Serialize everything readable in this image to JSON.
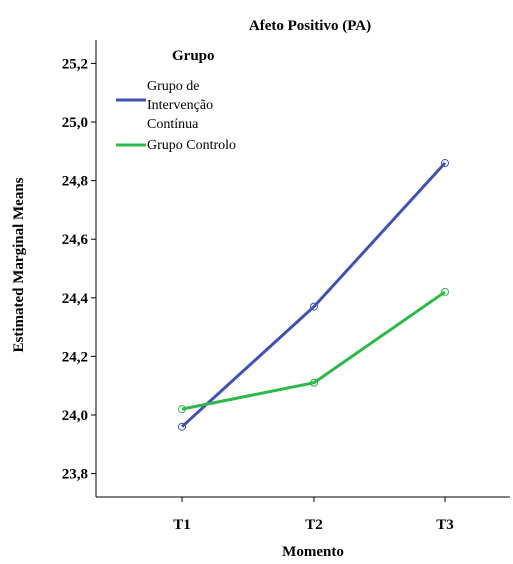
{
  "chart_data": {
    "type": "line",
    "title": "Afeto Positivo (PA)",
    "xlabel": "Momento",
    "ylabel": "Estimated Marginal Means",
    "categories": [
      "T1",
      "T2",
      "T3"
    ],
    "ylim": [
      23.72,
      25.28
    ],
    "yticks": [
      "23,8",
      "24,0",
      "24,2",
      "24,4",
      "24,6",
      "24,8",
      "25,0",
      "25,2"
    ],
    "ytick_values": [
      23.8,
      24.0,
      24.2,
      24.4,
      24.6,
      24.8,
      25.0,
      25.2
    ],
    "grid": false,
    "legend": {
      "title": "Grupo",
      "placement": "top-left"
    },
    "series": [
      {
        "name": "Grupo de Intervenção Contínua",
        "name_lines": [
          "Grupo de",
          "Intervenção",
          "Contínua"
        ],
        "color": "#3f51b5",
        "values": [
          23.96,
          24.37,
          24.86
        ]
      },
      {
        "name": "Grupo Controlo",
        "name_lines": [
          "Grupo Controlo"
        ],
        "color": "#2db84a",
        "values": [
          24.02,
          24.11,
          24.42
        ]
      }
    ]
  }
}
